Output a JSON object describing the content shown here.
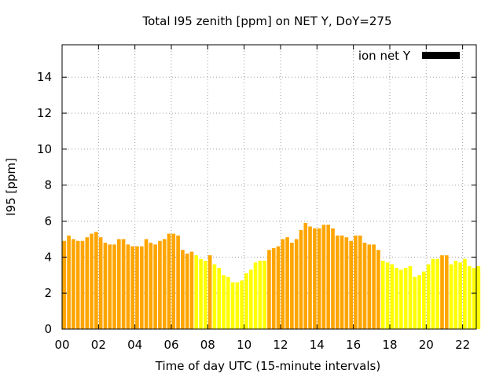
{
  "chart_data": {
    "type": "bar",
    "title": "Total I95 zenith [ppm] on NET Y, DoY=275",
    "xlabel": "Time of day UTC (15-minute intervals)",
    "ylabel": "I95 [ppm]",
    "xlim": [
      0,
      22.75
    ],
    "ylim": [
      0,
      15.8
    ],
    "yticks": [
      0,
      2,
      4,
      6,
      8,
      10,
      12,
      14
    ],
    "xticks": [
      {
        "v": 0,
        "label": "00"
      },
      {
        "v": 2,
        "label": "02"
      },
      {
        "v": 4,
        "label": "04"
      },
      {
        "v": 6,
        "label": "06"
      },
      {
        "v": 8,
        "label": "08"
      },
      {
        "v": 10,
        "label": "10"
      },
      {
        "v": 12,
        "label": "12"
      },
      {
        "v": 14,
        "label": "14"
      },
      {
        "v": 16,
        "label": "16"
      },
      {
        "v": 18,
        "label": "18"
      },
      {
        "v": 20,
        "label": "20"
      },
      {
        "v": 22,
        "label": "22"
      }
    ],
    "grid": true,
    "legend": {
      "label": "ion net Y",
      "position": "top-right",
      "color": "#000000"
    },
    "colors": {
      "high": "#ffa500",
      "low": "#ffff00"
    },
    "bar_interval_hours": 0.25,
    "values": [
      4.9,
      5.2,
      5.0,
      4.9,
      4.9,
      5.1,
      5.3,
      5.4,
      5.1,
      4.8,
      4.7,
      4.7,
      5.0,
      5.0,
      4.7,
      4.6,
      4.6,
      4.6,
      5.0,
      4.8,
      4.7,
      4.9,
      5.0,
      5.3,
      5.3,
      5.2,
      4.4,
      4.2,
      4.3,
      4.1,
      3.9,
      3.8,
      4.1,
      3.6,
      3.4,
      3.0,
      2.9,
      2.6,
      2.6,
      2.7,
      3.1,
      3.3,
      3.7,
      3.8,
      3.8,
      4.4,
      4.5,
      4.6,
      5.0,
      5.1,
      4.8,
      5.0,
      5.5,
      5.9,
      5.7,
      5.6,
      5.6,
      5.8,
      5.8,
      5.6,
      5.2,
      5.2,
      5.1,
      4.9,
      5.2,
      5.2,
      4.8,
      4.7,
      4.7,
      4.4,
      3.8,
      3.7,
      3.6,
      3.4,
      3.3,
      3.4,
      3.5,
      2.9,
      3.0,
      3.2,
      3.6,
      3.9,
      3.9,
      4.1,
      4.1,
      3.6,
      3.8,
      3.7,
      3.9,
      3.5,
      3.4,
      3.5
    ],
    "level": [
      "high",
      "high",
      "high",
      "high",
      "high",
      "high",
      "high",
      "high",
      "high",
      "high",
      "high",
      "high",
      "high",
      "high",
      "high",
      "high",
      "high",
      "high",
      "high",
      "high",
      "high",
      "high",
      "high",
      "high",
      "high",
      "high",
      "high",
      "high",
      "high",
      "low",
      "low",
      "low",
      "high",
      "low",
      "low",
      "low",
      "low",
      "low",
      "low",
      "low",
      "low",
      "low",
      "low",
      "low",
      "low",
      "high",
      "high",
      "high",
      "high",
      "high",
      "high",
      "high",
      "high",
      "high",
      "high",
      "high",
      "high",
      "high",
      "high",
      "high",
      "high",
      "high",
      "high",
      "high",
      "high",
      "high",
      "high",
      "high",
      "high",
      "high",
      "low",
      "low",
      "low",
      "low",
      "low",
      "low",
      "low",
      "low",
      "low",
      "low",
      "low",
      "low",
      "low",
      "high",
      "high",
      "low",
      "low",
      "low",
      "low",
      "low",
      "low",
      "low"
    ]
  }
}
